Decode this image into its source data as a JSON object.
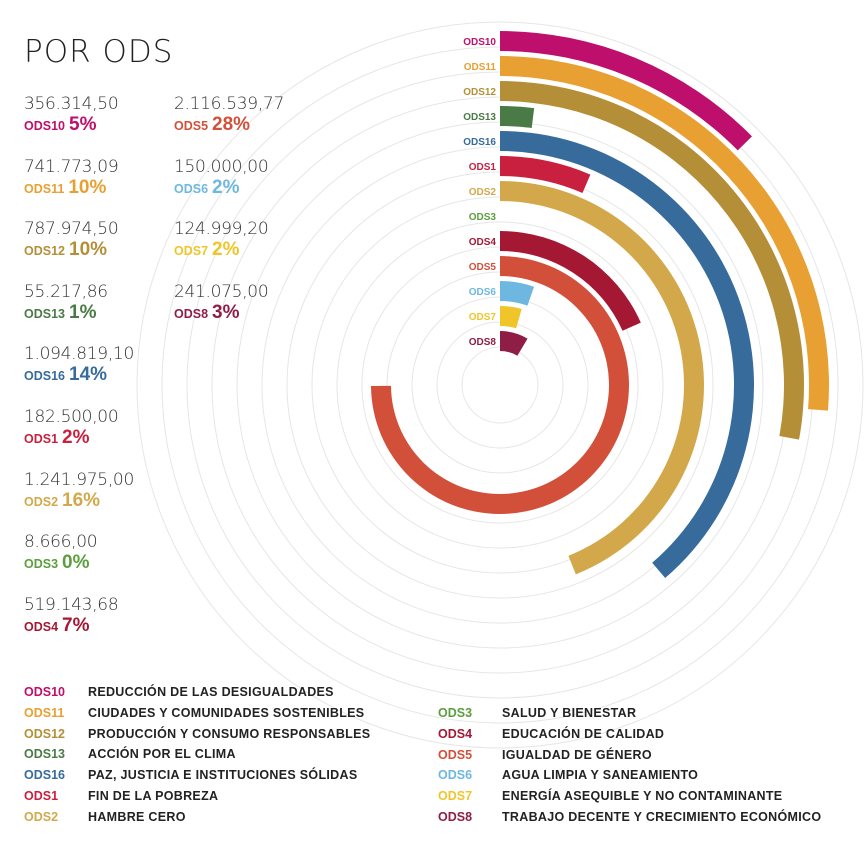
{
  "title": "POR ODS",
  "stats_left": [
    {
      "amount": "356.314,50",
      "code": "ODS10",
      "pct": "5%",
      "color": "#bd0f6b"
    },
    {
      "amount": "741.773,09",
      "code": "ODS11",
      "pct": "10%",
      "color": "#e8a033"
    },
    {
      "amount": "787.974,50",
      "code": "ODS12",
      "pct": "10%",
      "color": "#b58f37"
    },
    {
      "amount": "55.217,86",
      "code": "ODS13",
      "pct": "1%",
      "color": "#4a7a45"
    },
    {
      "amount": "1.094.819,10",
      "code": "ODS16",
      "pct": "14%",
      "color": "#366b9c"
    },
    {
      "amount": "182.500,00",
      "code": "ODS1",
      "pct": "2%",
      "color": "#c8203e"
    },
    {
      "amount": "1.241.975,00",
      "code": "ODS2",
      "pct": "16%",
      "color": "#d3a84a"
    },
    {
      "amount": "8.666,00",
      "code": "ODS3",
      "pct": "0%",
      "color": "#5c9e3e"
    },
    {
      "amount": "519.143,68",
      "code": "ODS4",
      "pct": "7%",
      "color": "#a51834"
    }
  ],
  "stats_right": [
    {
      "amount": "2.116.539,77",
      "code": "ODS5",
      "pct": "28%",
      "color": "#d2503a"
    },
    {
      "amount": "150.000,00",
      "code": "ODS6",
      "pct": "2%",
      "color": "#6db7e0"
    },
    {
      "amount": "124.999,20",
      "code": "ODS7",
      "pct": "2%",
      "color": "#f0c52a"
    },
    {
      "amount": "241.075,00",
      "code": "ODS8",
      "pct": "3%",
      "color": "#8e1e46"
    }
  ],
  "chart_data": {
    "type": "radial-bar",
    "series": [
      {
        "label": "ODS10",
        "value": 356314.5,
        "color": "#bd0f6b"
      },
      {
        "label": "ODS11",
        "value": 741773.09,
        "color": "#e8a033"
      },
      {
        "label": "ODS12",
        "value": 787974.5,
        "color": "#b58f37"
      },
      {
        "label": "ODS13",
        "value": 55217.86,
        "color": "#4a7a45"
      },
      {
        "label": "ODS16",
        "value": 1094819.1,
        "color": "#366b9c"
      },
      {
        "label": "ODS1",
        "value": 182500.0,
        "color": "#c8203e"
      },
      {
        "label": "ODS2",
        "value": 1241975.0,
        "color": "#d3a84a"
      },
      {
        "label": "ODS3",
        "value": 8666.0,
        "color": "#5c9e3e"
      },
      {
        "label": "ODS4",
        "value": 519143.68,
        "color": "#a51834"
      },
      {
        "label": "ODS5",
        "value": 2116539.77,
        "color": "#d2503a"
      },
      {
        "label": "ODS6",
        "value": 150000.0,
        "color": "#6db7e0"
      },
      {
        "label": "ODS7",
        "value": 124999.2,
        "color": "#f0c52a"
      },
      {
        "label": "ODS8",
        "value": 241075.0,
        "color": "#8e1e46"
      }
    ],
    "value_max": 2120000,
    "grid": true
  },
  "legend_left": [
    {
      "code": "ODS10",
      "name": "REDUCCIÓN DE LAS DESIGUALDADES",
      "color": "#bd0f6b"
    },
    {
      "code": "ODS11",
      "name": "CIUDADES Y COMUNIDADES SOSTENIBLES",
      "color": "#e8a033"
    },
    {
      "code": "ODS12",
      "name": "PRODUCCIÓN Y CONSUMO RESPONSABLES",
      "color": "#b58f37"
    },
    {
      "code": "ODS13",
      "name": "ACCIÓN POR EL CLIMA",
      "color": "#4a7a45"
    },
    {
      "code": "ODS16",
      "name": "PAZ, JUSTICIA E INSTITUCIONES SÓLIDAS",
      "color": "#366b9c"
    },
    {
      "code": "ODS1",
      "name": "FIN DE LA POBREZA",
      "color": "#c8203e"
    },
    {
      "code": "ODS2",
      "name": "HAMBRE CERO",
      "color": "#d3a84a"
    }
  ],
  "legend_right": [
    {
      "code": "ODS3",
      "name": "SALUD Y BIENESTAR",
      "color": "#5c9e3e"
    },
    {
      "code": "ODS4",
      "name": "EDUCACIÓN DE CALIDAD",
      "color": "#a51834"
    },
    {
      "code": "ODS5",
      "name": "IGUALDAD DE GÉNERO",
      "color": "#d2503a"
    },
    {
      "code": "ODS6",
      "name": "AGUA LIMPIA Y SANEAMIENTO",
      "color": "#6db7e0"
    },
    {
      "code": "ODS7",
      "name": "ENERGÍA ASEQUIBLE Y NO CONTAMINANTE",
      "color": "#f0c52a"
    },
    {
      "code": "ODS8",
      "name": "TRABAJO DECENTE Y CRECIMIENTO ECONÓMICO",
      "color": "#8e1e46"
    }
  ]
}
